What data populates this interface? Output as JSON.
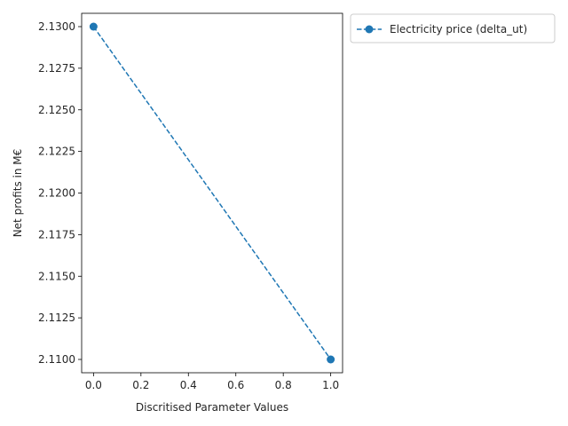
{
  "chart_data": {
    "type": "line",
    "xlabel": "Discritised Parameter Values",
    "ylabel": "Net profits in M€",
    "xlim": [
      -0.05,
      1.05
    ],
    "ylim": [
      2.1092,
      2.1308
    ],
    "xticks": [
      0.0,
      0.2,
      0.4,
      0.6,
      0.8,
      1.0
    ],
    "xtick_labels": [
      "0.0",
      "0.2",
      "0.4",
      "0.6",
      "0.8",
      "1.0"
    ],
    "yticks": [
      2.11,
      2.1125,
      2.115,
      2.1175,
      2.12,
      2.1225,
      2.125,
      2.1275,
      2.13
    ],
    "ytick_labels": [
      "2.1100",
      "2.1125",
      "2.1150",
      "2.1175",
      "2.1200",
      "2.1225",
      "2.1250",
      "2.1275",
      "2.1300"
    ],
    "grid": false,
    "legend_position": "outside-top-right",
    "series": [
      {
        "name": "Electricity price (delta_ut)",
        "color": "#1f77b4",
        "linestyle": "dashed",
        "marker": "circle",
        "x": [
          0.0,
          1.0
        ],
        "y": [
          2.13,
          2.11
        ]
      }
    ]
  }
}
